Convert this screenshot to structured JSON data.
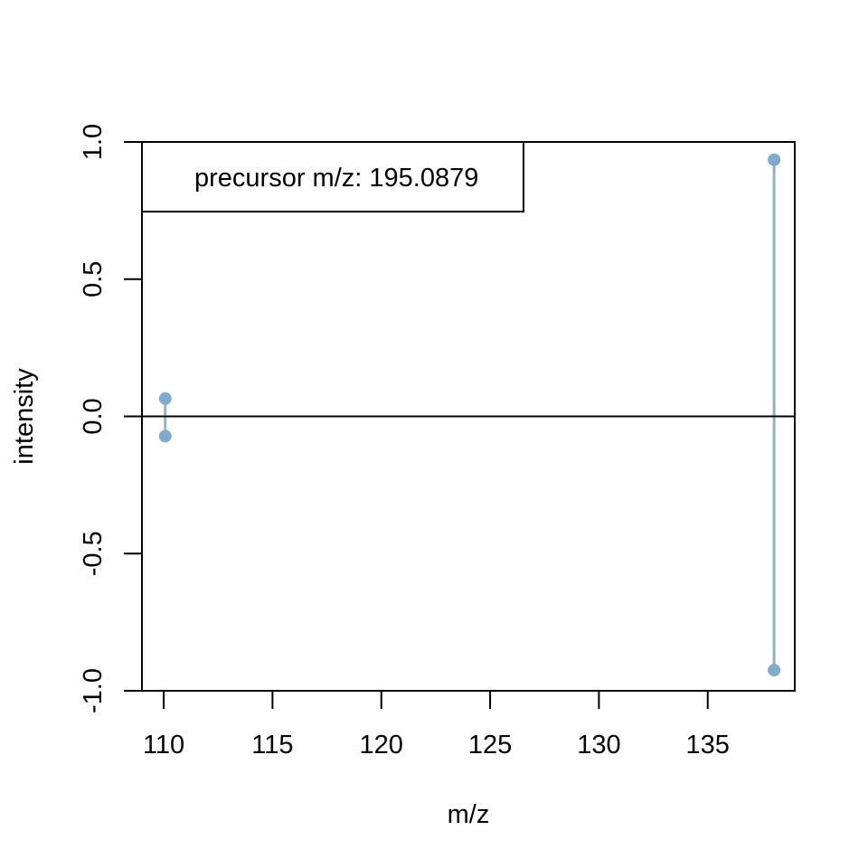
{
  "chart_data": {
    "type": "scatter",
    "subtype": "mirror-spectrum",
    "xlabel": "m/z",
    "ylabel": "intensity",
    "xlim": [
      109,
      139
    ],
    "ylim": [
      -1.0,
      1.0
    ],
    "x_ticks": [
      "110",
      "115",
      "120",
      "125",
      "130",
      "135"
    ],
    "y_ticks": [
      "-1.0",
      "-0.5",
      "0.0",
      "0.5",
      "1.0"
    ],
    "legend_text": "precursor m/z: 195.0879",
    "legend_position": "top-left",
    "peaks": [
      {
        "mz": 110.07,
        "top": 0.065,
        "bottom": -0.072
      },
      {
        "mz": 138.05,
        "top": 0.935,
        "bottom": -0.925
      }
    ],
    "colors": {
      "point": "#7fabcf",
      "stem": "#8fb3c0",
      "axis": "#000000"
    }
  }
}
